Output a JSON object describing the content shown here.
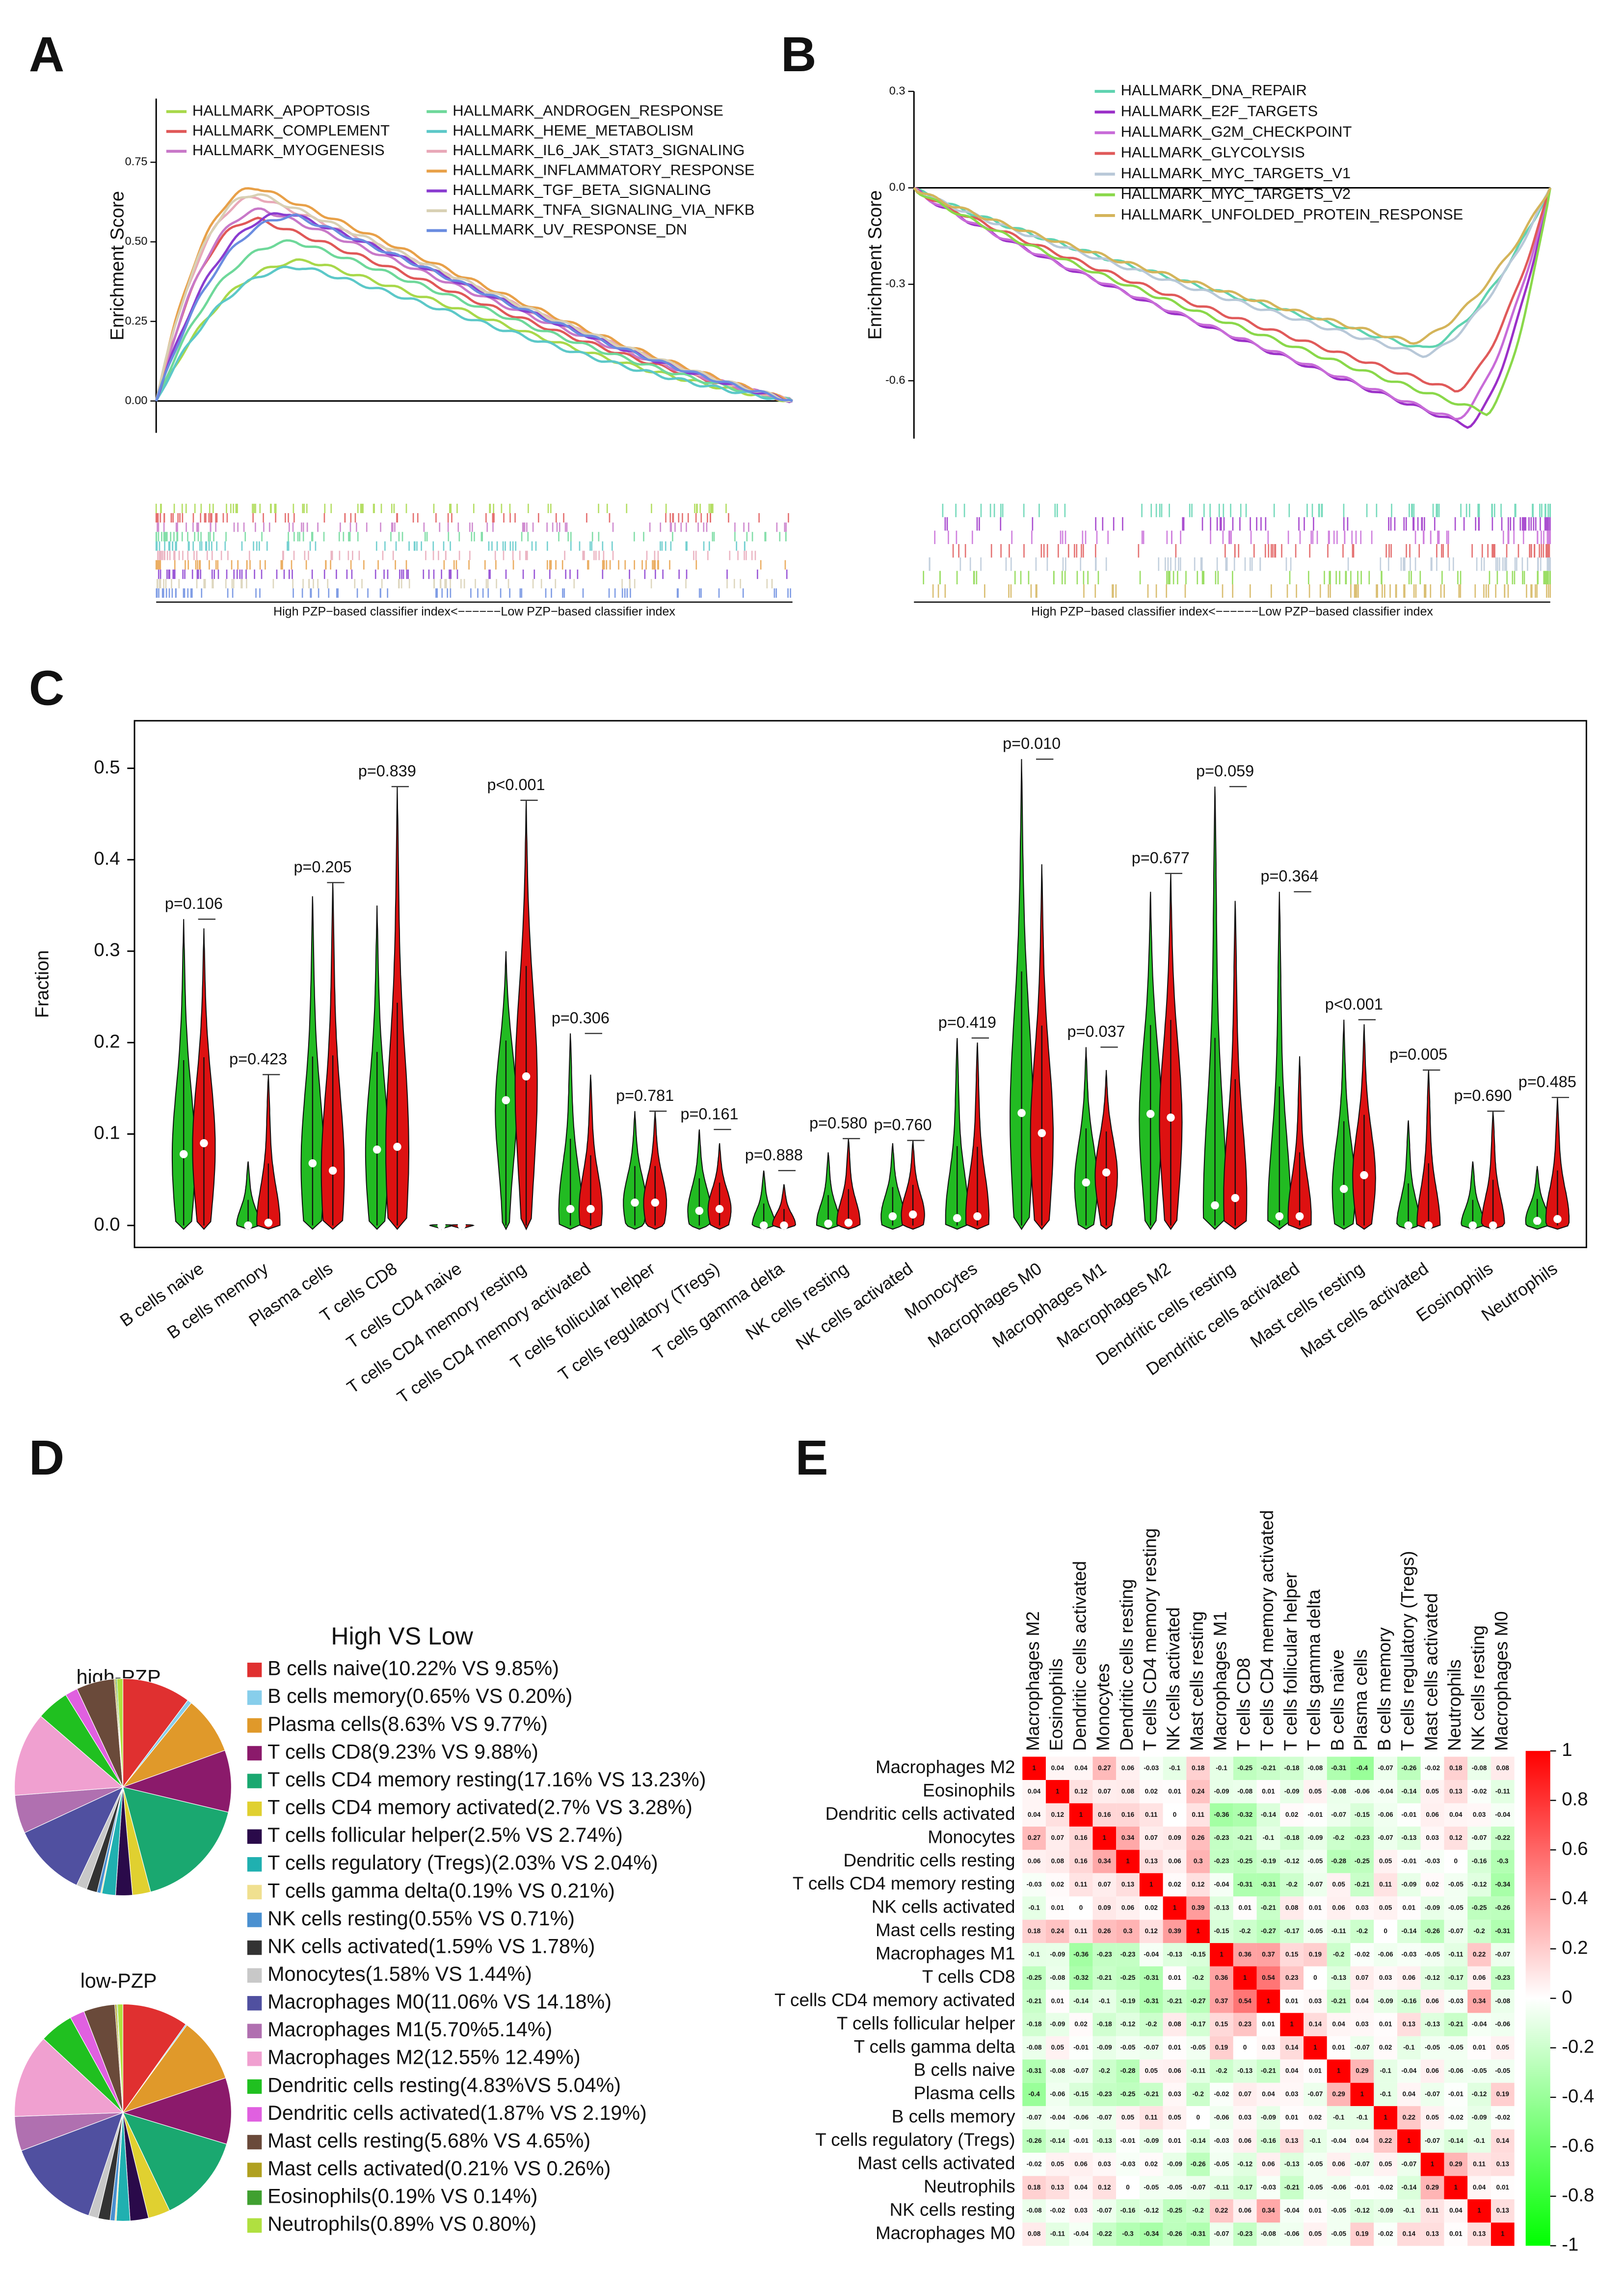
{
  "panel_labels": [
    "A",
    "B",
    "C",
    "D",
    "E"
  ],
  "chart_data": [
    {
      "type": "gsea",
      "ylabel": "Enrichment Score",
      "xlabel": "High PZP−based classifier index<−−−−−−Low PZP−based classifier index",
      "ylim": [
        -0.1,
        0.95
      ],
      "yticks": [
        {
          "value": 0,
          "label": "0.00"
        },
        0.25,
        {
          "value": 0.5,
          "label": "0.50"
        },
        0.75
      ],
      "series": [
        {
          "name": "HALLMARK_APOPTOSIS",
          "color": "#a8d84a",
          "peak": 0.44,
          "peak_x": 0.24
        },
        {
          "name": "HALLMARK_COMPLEMENT",
          "color": "#e05858",
          "peak": 0.57,
          "peak_x": 0.16
        },
        {
          "name": "HALLMARK_MYOGENESIS",
          "color": "#c878c8",
          "peak": 0.6,
          "peak_x": 0.17
        },
        {
          "name": "HALLMARK_ANDROGEN_RESPONSE",
          "color": "#6ed89a",
          "peak": 0.5,
          "peak_x": 0.22
        },
        {
          "name": "HALLMARK_HEME_METABOLISM",
          "color": "#5cc8c8",
          "peak": 0.42,
          "peak_x": 0.23
        },
        {
          "name": "HALLMARK_IL6_JAK_STAT3_SIGNALING",
          "color": "#e8a8b8",
          "peak": 0.64,
          "peak_x": 0.16
        },
        {
          "name": "HALLMARK_INFLAMMATORY_RESPONSE",
          "color": "#e8a048",
          "peak": 0.67,
          "peak_x": 0.16
        },
        {
          "name": "HALLMARK_TGF_BETA_SIGNALING",
          "color": "#8a3cd0",
          "peak": 0.59,
          "peak_x": 0.21
        },
        {
          "name": "HALLMARK_TNFA_SIGNALING_VIA_NFKB",
          "color": "#d8d0b4",
          "peak": 0.65,
          "peak_x": 0.16
        },
        {
          "name": "HALLMARK_UV_RESPONSE_DN",
          "color": "#6a8ce0",
          "peak": 0.58,
          "peak_x": 0.22
        }
      ]
    },
    {
      "type": "gsea",
      "ylabel": "Enrichment Score",
      "xlabel": "High PZP−based classifier index<−−−−−−Low PZP−based classifier index",
      "ylim": [
        -0.78,
        0.3
      ],
      "yticks": [
        0.3,
        {
          "value": 0,
          "label": "0.0"
        },
        -0.3,
        -0.6
      ],
      "series": [
        {
          "name": "HALLMARK_DNA_REPAIR",
          "color": "#5fd3b0",
          "peak": -0.5,
          "peak_x": 0.8
        },
        {
          "name": "HALLMARK_E2F_TARGETS",
          "color": "#9b30c8",
          "peak": -0.74,
          "peak_x": 0.87
        },
        {
          "name": "HALLMARK_G2M_CHECKPOINT",
          "color": "#c86bd8",
          "peak": -0.72,
          "peak_x": 0.85
        },
        {
          "name": "HALLMARK_GLYCOLYSIS",
          "color": "#e05a5a",
          "peak": -0.63,
          "peak_x": 0.85
        },
        {
          "name": "HALLMARK_MYC_TARGETS_V1",
          "color": "#b8c8d8",
          "peak": -0.52,
          "peak_x": 0.8
        },
        {
          "name": "HALLMARK_MYC_TARGETS_V2",
          "color": "#8ad84a",
          "peak": -0.7,
          "peak_x": 0.9
        },
        {
          "name": "HALLMARK_UNFOLDED_PROTEIN_RESPONSE",
          "color": "#d4b45a",
          "peak": -0.48,
          "peak_x": 0.78
        }
      ]
    },
    {
      "type": "violin",
      "ylabel": "Fraction",
      "ylim": [
        -0.024,
        0.552
      ],
      "yticks": [
        {
          "value": 0,
          "label": "0.0"
        },
        0.1,
        0.2,
        0.3,
        0.4,
        0.5
      ],
      "categories": [
        "B cells naive",
        "B cells memory",
        "Plasma cells",
        "T cells CD8",
        "T cells CD4 naive",
        "T cells CD4 memory resting",
        "T cells CD4 memory activated",
        "T cells follicular helper",
        "T cells regulatory (Tregs)",
        "T cells gamma delta",
        "NK cells resting",
        "NK cells activated",
        "Monocytes",
        "Macrophages M0",
        "Macrophages M1",
        "Macrophages M2",
        "Dendritic cells resting",
        "Dendritic cells activated",
        "Mast cells resting",
        "Mast cells activated",
        "Eosinophils",
        "Neutrophils"
      ],
      "p_labels": [
        "p=0.106",
        "p=0.423",
        "p=0.205",
        "p=0.839",
        null,
        "p<0.001",
        "p=0.306",
        "p=0.781",
        "p=0.161",
        "p=0.888",
        "p=0.580",
        "p=0.760",
        "p=0.419",
        "p=0.010",
        "p=0.037",
        "p=0.677",
        "p=0.059",
        "p=0.364",
        "p<0.001",
        "p=0.005",
        "p=0.690",
        "p=0.485"
      ],
      "series": [
        {
          "color": "#22bb22",
          "max": [
            0.335,
            0.07,
            0.36,
            0.35,
            0.001,
            0.3,
            0.21,
            0.125,
            0.105,
            0.06,
            0.08,
            0.09,
            0.205,
            0.51,
            0.195,
            0.365,
            0.48,
            0.365,
            0.225,
            0.115,
            0.07,
            0.065
          ],
          "median": [
            0.078,
            0,
            0.068,
            0.083,
            0,
            0.137,
            0.018,
            0.025,
            0.016,
            0,
            0.002,
            0.01,
            0.008,
            0.123,
            0.047,
            0.122,
            0.022,
            0.01,
            0.04,
            0,
            0,
            0.005
          ]
        },
        {
          "color": "#dd1111",
          "max": [
            0.325,
            0.165,
            0.375,
            0.48,
            0.001,
            0.465,
            0.165,
            0.125,
            0.09,
            0.045,
            0.095,
            0.093,
            0.2,
            0.395,
            0.17,
            0.385,
            0.355,
            0.185,
            0.22,
            0.17,
            0.125,
            0.14
          ],
          "median": [
            0.09,
            0.003,
            0.06,
            0.086,
            0,
            0.163,
            0.018,
            0.025,
            0.018,
            0,
            0.003,
            0.012,
            0.01,
            0.101,
            0.058,
            0.118,
            0.03,
            0.01,
            0.055,
            0,
            0,
            0.007
          ]
        }
      ]
    },
    {
      "type": "pie",
      "title": "High VS Low",
      "categories": [
        "B cells naive(10.22% VS 9.85%)",
        "B cells memory(0.65% VS 0.20%)",
        "Plasma cells(8.63% VS 9.77%)",
        "T cells CD8(9.23% VS 9.88%)",
        "T cells CD4 memory resting(17.16% VS 13.23%)",
        "T cells CD4 memory activated(2.7% VS 3.28%)",
        "T cells follicular helper(2.5% VS 2.74%)",
        "T cells regulatory (Tregs)(2.03% VS 2.04%)",
        "T cells gamma delta(0.19% VS 0.21%)",
        "NK cells resting(0.55% VS 0.71%)",
        "NK cells activated(1.59% VS 1.78%)",
        "Monocytes(1.58% VS 1.44%)",
        "Macrophages M0(11.06% VS 14.18%)",
        "Macrophages M1(5.70%5.14%)",
        "Macrophages M2(12.55% 12.49%)",
        "Dendritic cells resting(4.83%VS 5.04%)",
        "Dendritic cells activated(1.87% VS 2.19%)",
        "Mast cells resting(5.68% VS 4.65%)",
        "Mast cells activated(0.21% VS 0.26%)",
        "Eosinophils(0.19% VS 0.14%)",
        "Neutrophils(0.89% VS 0.80%)"
      ],
      "colors": [
        "#e03030",
        "#87ceeb",
        "#e0992a",
        "#8b1a6b",
        "#1aa870",
        "#e0d030",
        "#2a0a4a",
        "#20b0b0",
        "#f0e090",
        "#4a90d0",
        "#333333",
        "#c8c8c8",
        "#5050a0",
        "#b070b0",
        "#f0a0d0",
        "#20c020",
        "#e060e0",
        "#6a4a3a",
        "#b0a020",
        "#40a030",
        "#b0e040"
      ],
      "series": [
        {
          "name": "high-PZP",
          "values": [
            10.22,
            0.65,
            8.63,
            9.23,
            17.16,
            2.7,
            2.5,
            2.03,
            0.19,
            0.55,
            1.59,
            1.58,
            11.06,
            5.7,
            12.55,
            4.83,
            1.87,
            5.68,
            0.21,
            0.19,
            0.89
          ]
        },
        {
          "name": "low-PZP",
          "values": [
            9.85,
            0.2,
            9.77,
            9.88,
            13.23,
            3.28,
            2.74,
            2.04,
            0.21,
            0.71,
            1.78,
            1.44,
            14.18,
            5.14,
            12.49,
            5.04,
            2.19,
            4.65,
            0.26,
            0.14,
            0.8
          ]
        }
      ]
    },
    {
      "type": "heatmap",
      "rows": [
        "Macrophages M2",
        "Eosinophils",
        "Dendritic cells activated",
        "Monocytes",
        "Dendritic cells resting",
        "T cells CD4 memory resting",
        "NK cells activated",
        "Mast cells resting",
        "Macrophages M1",
        "T cells CD8",
        "T cells CD4 memory activated",
        "T cells follicular helper",
        "T cells gamma delta",
        "B cells naive",
        "Plasma cells",
        "B cells memory",
        "T cells regulatory (Tregs)",
        "Mast cells activated",
        "Neutrophils",
        "NK cells resting",
        "Macrophages M0"
      ],
      "columns": [
        "Macrophages M2",
        "Eosinophils",
        "Dendritic cells activated",
        "Monocytes",
        "Dendritic cells resting",
        "T cells CD4 memory resting",
        "NK cells activated",
        "Mast cells resting",
        "Macrophages M1",
        "T cells CD8",
        "T cells CD4 memory activated",
        "T cells follicular helper",
        "T cells gamma delta",
        "B cells naive",
        "Plasma cells",
        "B cells memory",
        "T cells regulatory (Tregs)",
        "Mast cells activated",
        "Neutrophils",
        "NK cells resting",
        "Macrophages M0"
      ],
      "zlim": [
        -1,
        1
      ],
      "zticks": [
        1,
        0.8,
        0.6,
        0.4,
        0.2,
        0,
        -0.2,
        -0.4,
        -0.6,
        -0.8,
        -1
      ],
      "values": [
        [
          1,
          0.04,
          0.04,
          0.27,
          0.06,
          -0.03,
          -0.1,
          0.18,
          -0.1,
          -0.25,
          -0.21,
          -0.18,
          -0.08,
          -0.31,
          -0.4,
          -0.07,
          -0.26,
          -0.02,
          0.18,
          -0.08,
          0.08
        ],
        [
          0.04,
          1,
          0.12,
          0.07,
          0.08,
          0.02,
          0.01,
          0.24,
          -0.09,
          -0.08,
          0.01,
          -0.09,
          0.05,
          -0.08,
          -0.06,
          -0.04,
          -0.14,
          0.05,
          0.13,
          -0.02,
          -0.11
        ],
        [
          0.04,
          0.12,
          1,
          0.16,
          0.16,
          0.11,
          0,
          0.11,
          -0.36,
          -0.32,
          -0.14,
          0.02,
          -0.01,
          -0.07,
          -0.15,
          -0.06,
          -0.01,
          0.06,
          0.04,
          0.03,
          -0.04
        ],
        [
          0.27,
          0.07,
          0.16,
          1,
          0.34,
          0.07,
          0.09,
          0.26,
          -0.23,
          -0.21,
          -0.1,
          -0.18,
          -0.09,
          -0.2,
          -0.23,
          -0.07,
          -0.13,
          0.03,
          0.12,
          -0.07,
          -0.22
        ],
        [
          0.06,
          0.08,
          0.16,
          0.34,
          1,
          0.13,
          0.06,
          0.3,
          -0.23,
          -0.25,
          -0.19,
          -0.12,
          -0.05,
          -0.28,
          -0.25,
          0.05,
          -0.01,
          -0.03,
          0,
          -0.16,
          -0.3
        ],
        [
          -0.03,
          0.02,
          0.11,
          0.07,
          0.13,
          1,
          0.02,
          0.12,
          -0.04,
          -0.31,
          -0.31,
          -0.2,
          -0.07,
          0.05,
          -0.21,
          0.11,
          -0.09,
          0.02,
          -0.05,
          -0.12,
          -0.34
        ],
        [
          -0.1,
          0.01,
          0,
          0.09,
          0.06,
          0.02,
          1,
          0.39,
          -0.13,
          0.01,
          -0.21,
          0.08,
          0.01,
          0.06,
          0.03,
          0.05,
          0.01,
          -0.09,
          -0.05,
          -0.25,
          -0.26
        ],
        [
          0.18,
          0.24,
          0.11,
          0.26,
          0.3,
          0.12,
          0.39,
          1,
          -0.15,
          -0.2,
          -0.27,
          -0.17,
          -0.05,
          -0.11,
          -0.2,
          0,
          -0.14,
          -0.26,
          -0.07,
          -0.2,
          -0.31
        ],
        [
          -0.1,
          -0.09,
          -0.36,
          -0.23,
          -0.23,
          -0.04,
          -0.13,
          -0.15,
          1,
          0.36,
          0.37,
          0.15,
          0.19,
          -0.2,
          -0.02,
          -0.06,
          -0.03,
          -0.05,
          -0.11,
          0.22,
          -0.07
        ],
        [
          -0.25,
          -0.08,
          -0.32,
          -0.21,
          -0.25,
          -0.31,
          0.01,
          -0.2,
          0.36,
          1,
          0.54,
          0.23,
          0,
          -0.13,
          0.07,
          0.03,
          0.06,
          -0.12,
          -0.17,
          0.06,
          -0.23
        ],
        [
          -0.21,
          0.01,
          -0.14,
          -0.1,
          -0.19,
          -0.31,
          -0.21,
          -0.27,
          0.37,
          0.54,
          1,
          0.01,
          0.03,
          -0.21,
          0.04,
          -0.09,
          -0.16,
          0.06,
          -0.03,
          0.34,
          -0.08
        ],
        [
          -0.18,
          -0.09,
          0.02,
          -0.18,
          -0.12,
          -0.2,
          0.08,
          -0.17,
          0.15,
          0.23,
          0.01,
          1,
          0.14,
          0.04,
          0.03,
          0.01,
          0.13,
          -0.13,
          -0.21,
          -0.04,
          -0.06
        ],
        [
          -0.08,
          0.05,
          -0.01,
          -0.09,
          -0.05,
          -0.07,
          0.01,
          -0.05,
          0.19,
          0,
          0.03,
          0.14,
          1,
          0.01,
          -0.07,
          0.02,
          -0.1,
          -0.05,
          -0.05,
          0.01,
          0.05
        ],
        [
          -0.31,
          -0.08,
          -0.07,
          -0.2,
          -0.28,
          0.05,
          0.06,
          -0.11,
          -0.2,
          -0.13,
          -0.21,
          0.04,
          0.01,
          1,
          0.29,
          -0.1,
          -0.04,
          0.06,
          -0.06,
          -0.05,
          -0.05
        ],
        [
          -0.4,
          -0.06,
          -0.15,
          -0.23,
          -0.25,
          -0.21,
          0.03,
          -0.2,
          -0.02,
          0.07,
          0.04,
          0.03,
          -0.07,
          0.29,
          1,
          -0.1,
          0.04,
          -0.07,
          -0.01,
          -0.12,
          0.19
        ],
        [
          -0.07,
          -0.04,
          -0.06,
          -0.07,
          0.05,
          0.11,
          0.05,
          0,
          -0.06,
          0.03,
          -0.09,
          0.01,
          0.02,
          -0.1,
          -0.1,
          1,
          0.22,
          0.05,
          -0.02,
          -0.09,
          -0.02
        ],
        [
          -0.26,
          -0.14,
          -0.01,
          -0.13,
          -0.01,
          -0.09,
          0.01,
          -0.14,
          -0.03,
          0.06,
          -0.16,
          0.13,
          -0.1,
          -0.04,
          0.04,
          0.22,
          1,
          -0.07,
          -0.14,
          -0.1,
          0.14
        ],
        [
          -0.02,
          0.05,
          0.06,
          0.03,
          -0.03,
          0.02,
          -0.09,
          -0.26,
          -0.05,
          -0.12,
          0.06,
          -0.13,
          -0.05,
          0.06,
          -0.07,
          0.05,
          -0.07,
          1,
          0.29,
          0.11,
          0.13
        ],
        [
          0.18,
          0.13,
          0.04,
          0.12,
          0,
          -0.05,
          -0.05,
          -0.07,
          -0.11,
          -0.17,
          -0.03,
          -0.21,
          -0.05,
          -0.06,
          -0.01,
          -0.02,
          -0.14,
          0.29,
          1,
          0.04,
          0.01
        ],
        [
          -0.08,
          -0.02,
          0.03,
          -0.07,
          -0.16,
          -0.12,
          -0.25,
          -0.2,
          0.22,
          0.06,
          0.34,
          -0.04,
          0.01,
          -0.05,
          -0.12,
          -0.09,
          -0.1,
          0.11,
          0.04,
          1,
          0.13
        ],
        [
          0.08,
          -0.11,
          -0.04,
          -0.22,
          -0.3,
          -0.34,
          -0.26,
          -0.31,
          -0.07,
          -0.23,
          -0.08,
          -0.06,
          0.05,
          -0.05,
          0.19,
          -0.02,
          0.14,
          0.13,
          0.01,
          0.13,
          1
        ]
      ]
    }
  ]
}
